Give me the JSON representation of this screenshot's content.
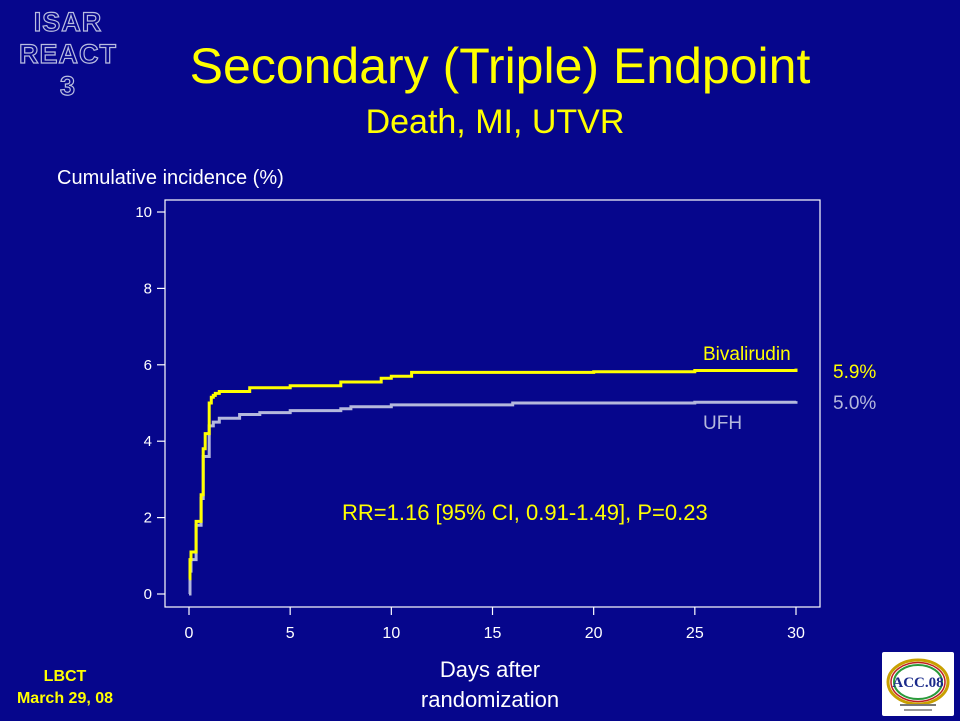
{
  "corner_logo": {
    "line1": "ISAR",
    "line2": "REACT 3"
  },
  "footer": {
    "line1": "LBCT",
    "line2": "March 29, 08"
  },
  "acc_logo": {
    "text": "ACC.08"
  },
  "colors": {
    "background": "#06068c",
    "bivalirudin": "#ffff00",
    "ufh": "#b4b8dc",
    "text": "#ffffff"
  },
  "chart_data": {
    "type": "line",
    "title": "Secondary (Triple) Endpoint",
    "subtitle": "Death, MI, UTVR",
    "ylabel": "Cumulative incidence (%)",
    "xlabel_line1": "Days after",
    "xlabel_line2": "randomization",
    "xlim": [
      0,
      30
    ],
    "ylim": [
      0,
      10
    ],
    "xticks": [
      0,
      5,
      10,
      15,
      20,
      25,
      30
    ],
    "yticks": [
      0,
      2,
      4,
      6,
      8,
      10
    ],
    "grid": false,
    "series": [
      {
        "name": "Bivalirudin",
        "end_label": "5.9%",
        "x": [
          0,
          0.05,
          0.1,
          0.3,
          0.35,
          0.55,
          0.6,
          0.7,
          0.8,
          0.9,
          1.0,
          1.1,
          1.2,
          1.3,
          1.5,
          2.0,
          3.0,
          5.0,
          7.5,
          9.5,
          10.0,
          11.0,
          20.0,
          25.0,
          30.0
        ],
        "y": [
          0.4,
          0.9,
          1.1,
          1.1,
          1.9,
          1.9,
          2.6,
          3.8,
          4.2,
          4.2,
          5.0,
          5.15,
          5.2,
          5.25,
          5.3,
          5.3,
          5.4,
          5.45,
          5.55,
          5.65,
          5.7,
          5.8,
          5.82,
          5.85,
          5.9
        ]
      },
      {
        "name": "UFH",
        "end_label": "5.0%",
        "x": [
          0,
          0.05,
          0.1,
          0.3,
          0.35,
          0.55,
          0.6,
          0.7,
          0.8,
          0.9,
          1.0,
          1.2,
          1.5,
          2.5,
          3.5,
          5.0,
          7.5,
          8.0,
          10.0,
          16.0,
          25.0,
          30.0
        ],
        "y": [
          0,
          0.6,
          0.9,
          0.9,
          1.8,
          1.8,
          2.5,
          3.6,
          3.6,
          3.6,
          4.4,
          4.5,
          4.6,
          4.7,
          4.75,
          4.8,
          4.85,
          4.9,
          4.95,
          5.0,
          5.02,
          5.05
        ]
      }
    ],
    "annotations": [
      {
        "text": "RR=1.16 [95% CI, 0.91-1.49], P=0.23"
      }
    ]
  }
}
